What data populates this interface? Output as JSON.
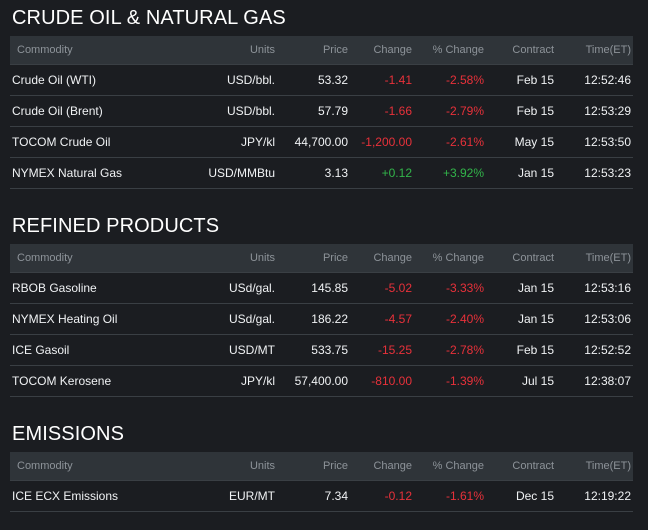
{
  "columns": [
    "Commodity",
    "Units",
    "Price",
    "Change",
    "% Change",
    "Contract",
    "Time(ET)"
  ],
  "sections": [
    {
      "title": "CRUDE OIL & NATURAL GAS",
      "rows": [
        {
          "name": "Crude Oil (WTI)",
          "units": "USD/bbl.",
          "price": "53.32",
          "change": "-1.41",
          "pct": "-2.58%",
          "contract": "Feb 15",
          "time": "12:52:46",
          "dir": "neg"
        },
        {
          "name": "Crude Oil (Brent)",
          "units": "USD/bbl.",
          "price": "57.79",
          "change": "-1.66",
          "pct": "-2.79%",
          "contract": "Feb 15",
          "time": "12:53:29",
          "dir": "neg"
        },
        {
          "name": "TOCOM Crude Oil",
          "units": "JPY/kl",
          "price": "44,700.00",
          "change": "-1,200.00",
          "pct": "-2.61%",
          "contract": "May 15",
          "time": "12:53:50",
          "dir": "neg"
        },
        {
          "name": "NYMEX Natural Gas",
          "units": "USD/MMBtu",
          "price": "3.13",
          "change": "+0.12",
          "pct": "+3.92%",
          "contract": "Jan 15",
          "time": "12:53:23",
          "dir": "pos"
        }
      ]
    },
    {
      "title": "REFINED PRODUCTS",
      "rows": [
        {
          "name": "RBOB Gasoline",
          "units": "USd/gal.",
          "price": "145.85",
          "change": "-5.02",
          "pct": "-3.33%",
          "contract": "Jan 15",
          "time": "12:53:16",
          "dir": "neg"
        },
        {
          "name": "NYMEX Heating Oil",
          "units": "USd/gal.",
          "price": "186.22",
          "change": "-4.57",
          "pct": "-2.40%",
          "contract": "Jan 15",
          "time": "12:53:06",
          "dir": "neg"
        },
        {
          "name": "ICE Gasoil",
          "units": "USD/MT",
          "price": "533.75",
          "change": "-15.25",
          "pct": "-2.78%",
          "contract": "Feb 15",
          "time": "12:52:52",
          "dir": "neg"
        },
        {
          "name": "TOCOM Kerosene",
          "units": "JPY/kl",
          "price": "57,400.00",
          "change": "-810.00",
          "pct": "-1.39%",
          "contract": "Jul 15",
          "time": "12:38:07",
          "dir": "neg"
        }
      ]
    },
    {
      "title": "EMISSIONS",
      "rows": [
        {
          "name": "ICE ECX Emissions",
          "units": "EUR/MT",
          "price": "7.34",
          "change": "-0.12",
          "pct": "-1.61%",
          "contract": "Dec 15",
          "time": "12:19:22",
          "dir": "neg"
        }
      ]
    }
  ],
  "colors": {
    "background": "#1b1d21",
    "header_row": "#2f3439",
    "negative": "#e8313a",
    "positive": "#32b44a"
  }
}
